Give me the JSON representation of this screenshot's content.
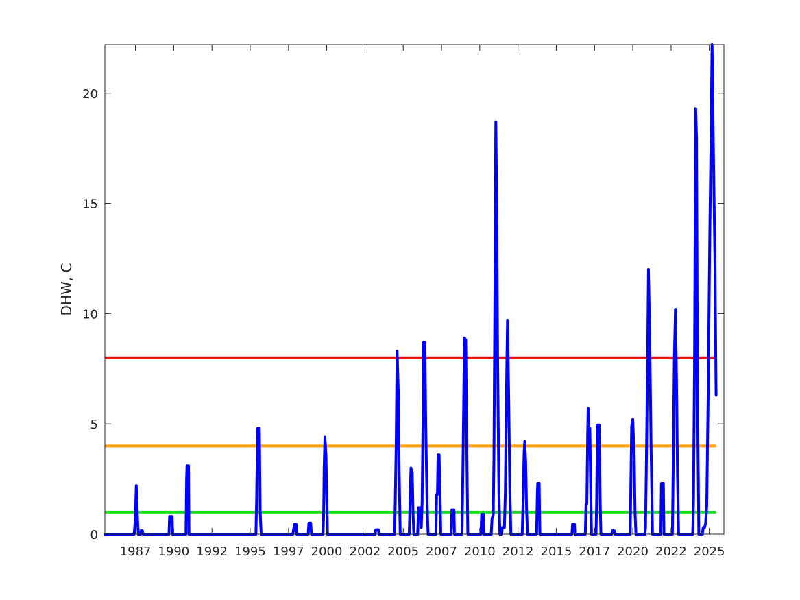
{
  "chart_data": {
    "type": "line",
    "title": "",
    "xlabel": "",
    "ylabel": "DHW, C",
    "x_axis_kind": "time",
    "xlim": [
      "1985-01-01",
      "2025-06-15"
    ],
    "ylim": [
      0,
      22.2
    ],
    "x_ticks": [
      {
        "date": "1987-01-01",
        "label": "1987"
      },
      {
        "date": "1989-07-01",
        "label": "1990"
      },
      {
        "date": "1992-01-01",
        "label": "1992"
      },
      {
        "date": "1994-07-01",
        "label": "1995"
      },
      {
        "date": "1997-01-01",
        "label": "1997"
      },
      {
        "date": "1999-07-01",
        "label": "2000"
      },
      {
        "date": "2002-01-01",
        "label": "2002"
      },
      {
        "date": "2004-07-01",
        "label": "2005"
      },
      {
        "date": "2007-01-01",
        "label": "2007"
      },
      {
        "date": "2009-07-01",
        "label": "2010"
      },
      {
        "date": "2012-01-01",
        "label": "2012"
      },
      {
        "date": "2014-07-01",
        "label": "2015"
      },
      {
        "date": "2017-01-01",
        "label": "2017"
      },
      {
        "date": "2019-07-01",
        "label": "2020"
      },
      {
        "date": "2022-01-01",
        "label": "2022"
      },
      {
        "date": "2024-07-01",
        "label": "2025"
      }
    ],
    "y_ticks": [
      0,
      5,
      10,
      15,
      20
    ],
    "grid": false,
    "box": true,
    "thresholds": [
      {
        "value": 1,
        "color": "#22dd22"
      },
      {
        "value": 4,
        "color": "#ff9f00"
      },
      {
        "value": 8,
        "color": "#ee1111"
      }
    ],
    "series": [
      {
        "color": "#0000ff",
        "points": [
          [
            "1985-01-01",
            0
          ],
          [
            "1986-12-01",
            0
          ],
          [
            "1986-12-20",
            0.5
          ],
          [
            "1987-01-05",
            1.2
          ],
          [
            "1987-01-20",
            2.2
          ],
          [
            "1987-02-01",
            1.6
          ],
          [
            "1987-02-20",
            0.6
          ],
          [
            "1987-03-10",
            0
          ],
          [
            "1987-05-01",
            0
          ],
          [
            "1987-05-15",
            0.15
          ],
          [
            "1987-06-15",
            0.15
          ],
          [
            "1987-07-01",
            0
          ],
          [
            "1989-03-10",
            0
          ],
          [
            "1989-03-25",
            0.8
          ],
          [
            "1989-05-25",
            0.8
          ],
          [
            "1989-06-05",
            0
          ],
          [
            "1990-04-20",
            0
          ],
          [
            "1990-05-05",
            2.5
          ],
          [
            "1990-05-15",
            3.1
          ],
          [
            "1990-06-20",
            3.1
          ],
          [
            "1990-07-01",
            0
          ],
          [
            "1994-11-15",
            0
          ],
          [
            "1994-12-01",
            1.5
          ],
          [
            "1994-12-25",
            4.8
          ],
          [
            "1995-02-05",
            4.8
          ],
          [
            "1995-02-25",
            1.0
          ],
          [
            "1995-03-20",
            0
          ],
          [
            "1997-04-15",
            0
          ],
          [
            "1997-05-01",
            0.2
          ],
          [
            "1997-05-20",
            0.45
          ],
          [
            "1997-07-01",
            0.45
          ],
          [
            "1997-07-15",
            0
          ],
          [
            "1998-04-15",
            0
          ],
          [
            "1998-05-01",
            0.5
          ],
          [
            "1998-06-15",
            0.5
          ],
          [
            "1998-07-01",
            0
          ],
          [
            "1999-04-05",
            0
          ],
          [
            "1999-04-20",
            1.0
          ],
          [
            "1999-05-01",
            3.0
          ],
          [
            "1999-05-20",
            4.4
          ],
          [
            "1999-06-15",
            3.5
          ],
          [
            "1999-07-05",
            1.5
          ],
          [
            "1999-07-20",
            0
          ],
          [
            "2002-09-01",
            0
          ],
          [
            "2002-09-15",
            0.2
          ],
          [
            "2002-11-15",
            0.2
          ],
          [
            "2002-12-01",
            0
          ],
          [
            "2003-12-10",
            0
          ],
          [
            "2004-01-15",
            4.0
          ],
          [
            "2004-02-05",
            8.3
          ],
          [
            "2004-03-05",
            6.5
          ],
          [
            "2004-03-25",
            3.0
          ],
          [
            "2004-04-20",
            0
          ],
          [
            "2004-11-20",
            0
          ],
          [
            "2004-12-05",
            1.0
          ],
          [
            "2005-01-01",
            3.0
          ],
          [
            "2005-02-01",
            2.8
          ],
          [
            "2005-02-20",
            1.0
          ],
          [
            "2005-03-10",
            0
          ],
          [
            "2005-06-10",
            0
          ],
          [
            "2005-07-01",
            1.2
          ],
          [
            "2005-08-15",
            1.2
          ],
          [
            "2005-09-05",
            0.3
          ],
          [
            "2005-09-25",
            1.5
          ],
          [
            "2005-10-15",
            5.0
          ],
          [
            "2005-11-01",
            8.7
          ],
          [
            "2005-12-01",
            8.7
          ],
          [
            "2005-12-20",
            5.0
          ],
          [
            "2006-01-20",
            1.5
          ],
          [
            "2006-02-15",
            0
          ],
          [
            "2006-08-20",
            0
          ],
          [
            "2006-09-05",
            1.8
          ],
          [
            "2006-09-25",
            1.8
          ],
          [
            "2006-10-10",
            3.6
          ],
          [
            "2006-11-05",
            3.6
          ],
          [
            "2006-11-25",
            2.0
          ],
          [
            "2006-12-15",
            0
          ],
          [
            "2007-08-20",
            0
          ],
          [
            "2007-09-05",
            1.1
          ],
          [
            "2007-10-25",
            1.1
          ],
          [
            "2007-11-05",
            0
          ],
          [
            "2008-05-05",
            0
          ],
          [
            "2008-06-01",
            4.0
          ],
          [
            "2008-07-01",
            8.9
          ],
          [
            "2008-08-01",
            8.8
          ],
          [
            "2008-08-25",
            4.0
          ],
          [
            "2008-09-20",
            0
          ],
          [
            "2009-08-01",
            0
          ],
          [
            "2009-08-15",
            0.9
          ],
          [
            "2009-09-25",
            0.9
          ],
          [
            "2009-10-05",
            0
          ],
          [
            "2010-04-01",
            0
          ],
          [
            "2010-04-20",
            0.7
          ],
          [
            "2010-05-20",
            0.9
          ],
          [
            "2010-06-05",
            3.5
          ],
          [
            "2010-07-01",
            12.0
          ],
          [
            "2010-07-20",
            18.7
          ],
          [
            "2010-08-10",
            15.0
          ],
          [
            "2010-09-01",
            8.0
          ],
          [
            "2010-10-01",
            2.0
          ],
          [
            "2010-10-25",
            0
          ],
          [
            "2010-12-10",
            0
          ],
          [
            "2010-12-20",
            0.3
          ],
          [
            "2011-02-10",
            0.3
          ],
          [
            "2011-03-05",
            2.0
          ],
          [
            "2011-04-01",
            6.5
          ],
          [
            "2011-04-25",
            9.7
          ],
          [
            "2011-05-25",
            6.0
          ],
          [
            "2011-06-20",
            2.0
          ],
          [
            "2011-07-15",
            0
          ],
          [
            "2012-04-10",
            0
          ],
          [
            "2012-05-01",
            1.5
          ],
          [
            "2012-05-25",
            3.7
          ],
          [
            "2012-06-10",
            4.2
          ],
          [
            "2012-07-01",
            3.3
          ],
          [
            "2012-07-25",
            1.0
          ],
          [
            "2012-08-15",
            0
          ],
          [
            "2013-03-20",
            0
          ],
          [
            "2013-04-05",
            1.8
          ],
          [
            "2013-04-15",
            2.3
          ],
          [
            "2013-05-20",
            2.3
          ],
          [
            "2013-06-05",
            0
          ],
          [
            "2015-07-10",
            0
          ],
          [
            "2015-07-25",
            0.45
          ],
          [
            "2015-09-10",
            0.45
          ],
          [
            "2015-09-20",
            0
          ],
          [
            "2016-05-25",
            0
          ],
          [
            "2016-06-10",
            1.3
          ],
          [
            "2016-07-01",
            1.4
          ],
          [
            "2016-07-20",
            4.5
          ],
          [
            "2016-08-01",
            5.7
          ],
          [
            "2016-08-20",
            4.0
          ],
          [
            "2016-09-10",
            4.8
          ],
          [
            "2016-10-01",
            2.0
          ],
          [
            "2016-10-20",
            0
          ],
          [
            "2017-02-05",
            0
          ],
          [
            "2017-02-20",
            1.5
          ],
          [
            "2017-03-10",
            4.95
          ],
          [
            "2017-04-20",
            4.95
          ],
          [
            "2017-05-15",
            1.5
          ],
          [
            "2017-06-01",
            0
          ],
          [
            "2018-02-15",
            0
          ],
          [
            "2018-03-01",
            0.15
          ],
          [
            "2018-04-15",
            0.15
          ],
          [
            "2018-05-01",
            0
          ],
          [
            "2019-05-01",
            0
          ],
          [
            "2019-05-15",
            2.0
          ],
          [
            "2019-06-05",
            4.9
          ],
          [
            "2019-07-01",
            5.2
          ],
          [
            "2019-08-05",
            3.5
          ],
          [
            "2019-08-25",
            1.0
          ],
          [
            "2019-09-15",
            0
          ],
          [
            "2020-04-15",
            0
          ],
          [
            "2020-05-01",
            0.3
          ],
          [
            "2020-05-20",
            3.0
          ],
          [
            "2020-06-20",
            8.0
          ],
          [
            "2020-07-10",
            12.0
          ],
          [
            "2020-08-10",
            9.0
          ],
          [
            "2020-09-10",
            4.0
          ],
          [
            "2020-10-15",
            0
          ],
          [
            "2021-05-01",
            0
          ],
          [
            "2021-05-15",
            2.3
          ],
          [
            "2021-07-01",
            2.3
          ],
          [
            "2021-07-15",
            0
          ],
          [
            "2022-02-01",
            0
          ],
          [
            "2022-02-20",
            3.0
          ],
          [
            "2022-03-20",
            8.0
          ],
          [
            "2022-04-15",
            10.2
          ],
          [
            "2022-05-10",
            7.0
          ],
          [
            "2022-06-05",
            2.5
          ],
          [
            "2022-06-30",
            0
          ],
          [
            "2023-06-01",
            0
          ],
          [
            "2023-06-20",
            1.5
          ],
          [
            "2023-07-15",
            8.0
          ],
          [
            "2023-08-10",
            19.3
          ],
          [
            "2023-09-01",
            18.0
          ],
          [
            "2023-09-15",
            10.5
          ],
          [
            "2023-10-05",
            4.0
          ],
          [
            "2023-10-25",
            0
          ],
          [
            "2024-01-20",
            0
          ],
          [
            "2024-02-05",
            0.3
          ],
          [
            "2024-03-10",
            0.3
          ],
          [
            "2024-04-05",
            0.5
          ],
          [
            "2024-05-01",
            1.3
          ],
          [
            "2024-06-05",
            6.5
          ],
          [
            "2024-07-15",
            14.0
          ],
          [
            "2024-08-15",
            18.5
          ],
          [
            "2024-09-05",
            22.2
          ],
          [
            "2024-10-10",
            17.0
          ],
          [
            "2024-11-15",
            12.0
          ],
          [
            "2024-12-10",
            6.3
          ]
        ]
      }
    ]
  }
}
